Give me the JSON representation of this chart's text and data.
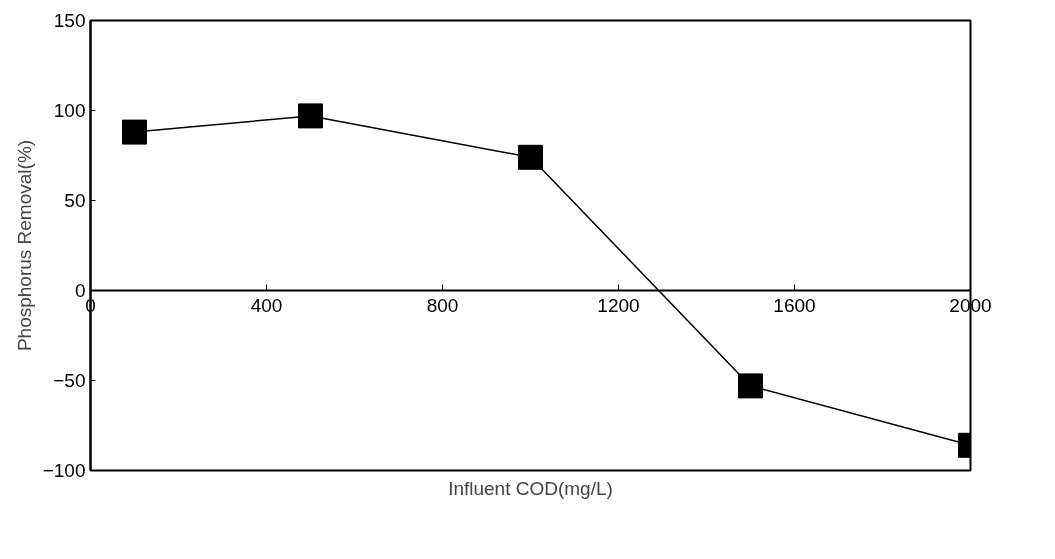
{
  "chart_data": {
    "type": "line",
    "xlabel": "Influent COD(mg/L)",
    "ylabel": "Phosphorus Removal(%)",
    "x": [
      100,
      500,
      1000,
      1500,
      2000
    ],
    "series": [
      {
        "color": "#000000",
        "values": [
          88,
          97,
          74,
          -53,
          -86
        ]
      }
    ],
    "xlim": [
      0,
      2000
    ],
    "ylim": [
      -100,
      150
    ],
    "xticks": [
      0,
      400,
      800,
      1200,
      1600,
      2000
    ],
    "yticks": [
      -100,
      -50,
      0,
      50,
      100,
      150
    ],
    "marker": "square",
    "line_style": "solid",
    "grid": false
  }
}
